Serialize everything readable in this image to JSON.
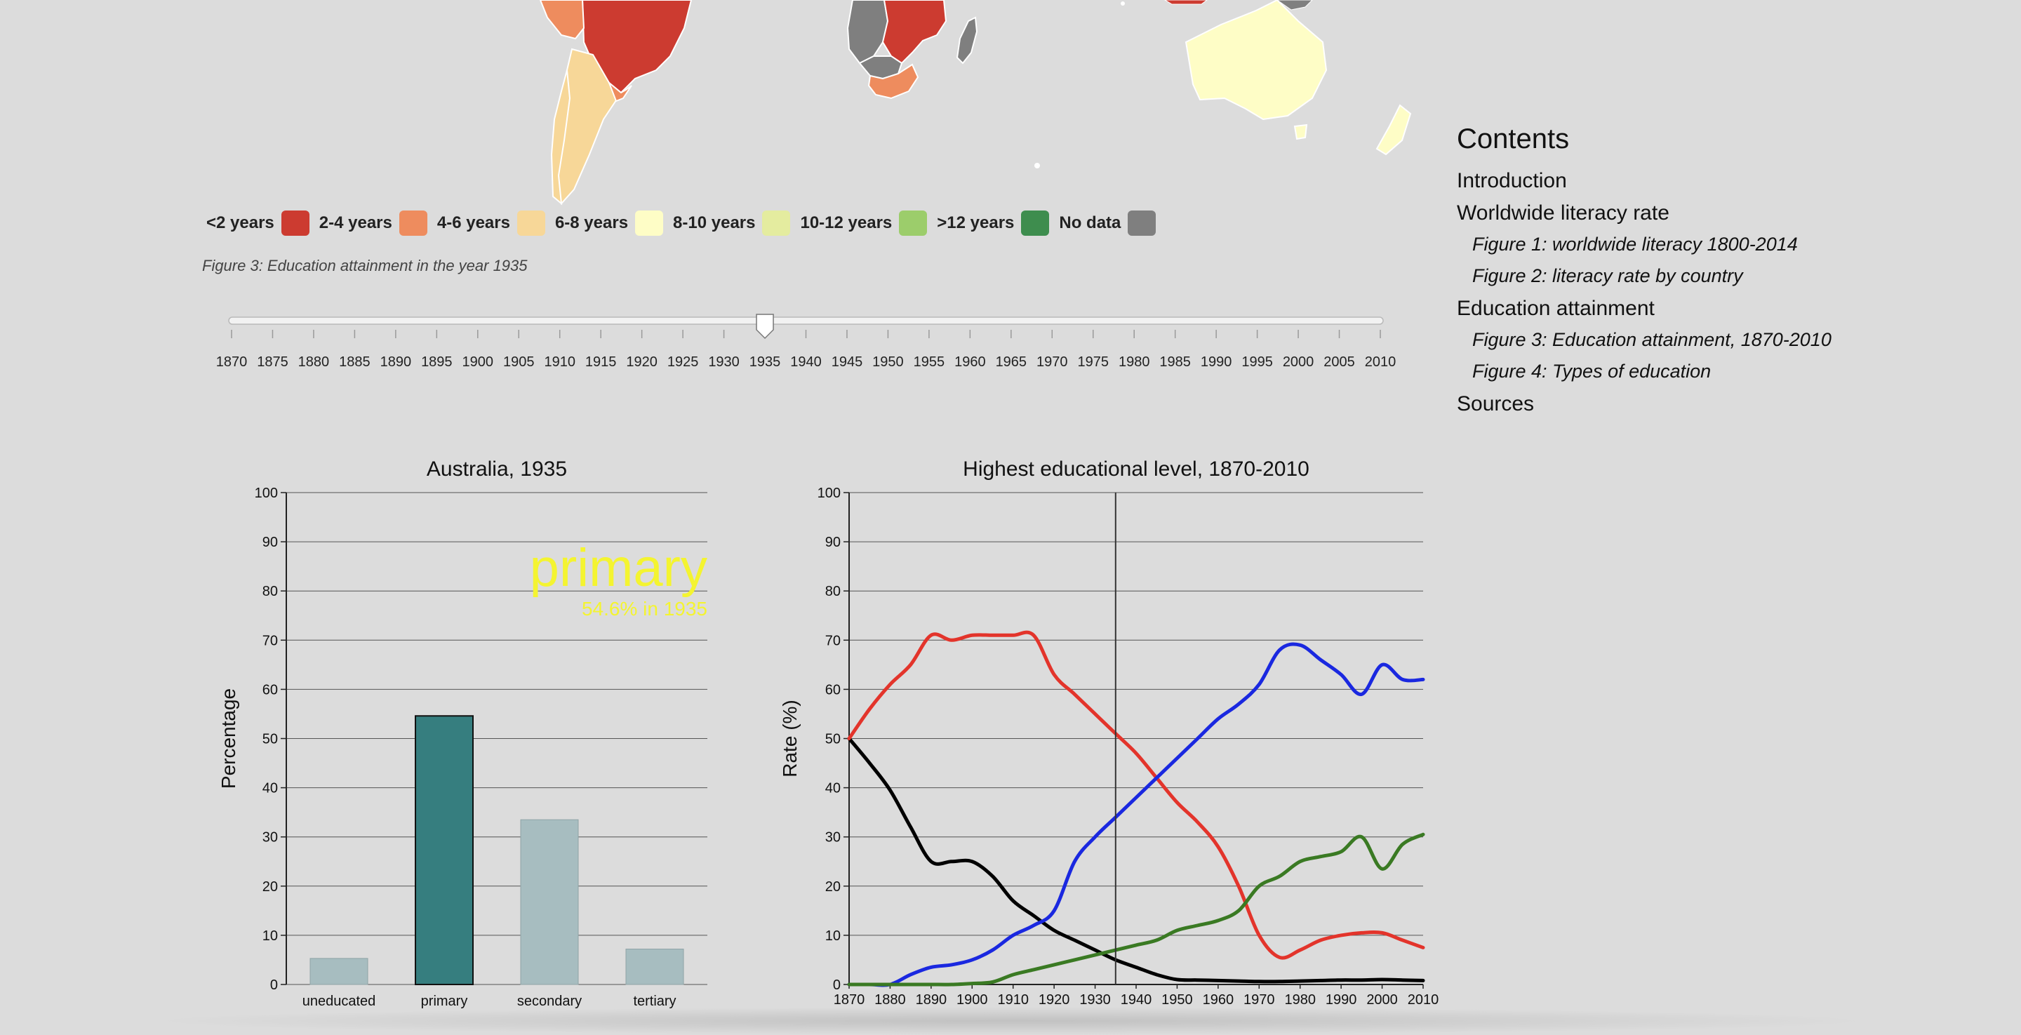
{
  "map": {
    "colors": {
      "lt2": "#cc3b30",
      "y2_4": "#ee8c5e",
      "y4_6": "#f7d798",
      "y6_8": "#fefdc6",
      "y8_10": "#e4ec9f",
      "y10_12": "#9ccd6b",
      "gt12": "#3e8d4e",
      "nodata": "#7f7f7f"
    },
    "legend": [
      {
        "label": "<2 years",
        "color": "#cc3b30"
      },
      {
        "label": "2-4 years",
        "color": "#ee8c5e"
      },
      {
        "label": "4-6 years",
        "color": "#f7d798"
      },
      {
        "label": "6-8 years",
        "color": "#fefdc6"
      },
      {
        "label": "8-10 years",
        "color": "#e4ec9f"
      },
      {
        "label": "10-12 years",
        "color": "#9ccd6b"
      },
      {
        "label": ">12 years",
        "color": "#3e8d4e"
      },
      {
        "label": "No data",
        "color": "#7f7f7f"
      }
    ],
    "caption": "Figure 3: Education attainment in the year 1935"
  },
  "slider": {
    "years": [
      "1870",
      "1875",
      "1880",
      "1885",
      "1890",
      "1895",
      "1900",
      "1905",
      "1910",
      "1915",
      "1920",
      "1925",
      "1930",
      "1935",
      "1940",
      "1945",
      "1950",
      "1955",
      "1960",
      "1965",
      "1970",
      "1975",
      "1980",
      "1985",
      "1990",
      "1995",
      "2000",
      "2005",
      "2010"
    ],
    "selected_year": 1935,
    "min": 1870,
    "max": 2010
  },
  "contents": {
    "title": "Contents",
    "items": [
      {
        "label": "Introduction",
        "level": 1
      },
      {
        "label": "Worldwide literacy rate",
        "level": 1
      },
      {
        "label": "Figure 1: worldwide literacy 1800-2014",
        "level": 2
      },
      {
        "label": "Figure 2: literacy rate by country",
        "level": 2
      },
      {
        "label": "Education attainment",
        "level": 1
      },
      {
        "label": "Figure 3: Education attainment, 1870-2010",
        "level": 2
      },
      {
        "label": "Figure 4: Types of education",
        "level": 2
      },
      {
        "label": "Sources",
        "level": 1
      }
    ]
  },
  "chart_data": [
    {
      "type": "bar",
      "title": "Australia, 1935",
      "xlabel": "",
      "ylabel": "Percentage",
      "ylim": [
        0,
        100
      ],
      "yticks": [
        0,
        10,
        20,
        30,
        40,
        50,
        60,
        70,
        80,
        90,
        100
      ],
      "categories": [
        "uneducated",
        "primary",
        "secondary",
        "tertiary"
      ],
      "values": [
        5.3,
        54.6,
        33.5,
        7.2
      ],
      "highlight_index": 1,
      "highlight_color": "#367e7f",
      "bar_color": "#a7bdc0",
      "annotation": {
        "title": "primary",
        "subtitle": "54.6% in 1935",
        "color": "#f4f430"
      },
      "grid": true
    },
    {
      "type": "line",
      "title": "Highest educational level, 1870-2010",
      "xlabel": "",
      "ylabel": "Rate (%)",
      "xlim": [
        1870,
        2010
      ],
      "ylim": [
        0,
        100
      ],
      "xticks": [
        1870,
        1880,
        1890,
        1900,
        1910,
        1920,
        1930,
        1940,
        1950,
        1960,
        1970,
        1980,
        1990,
        2000,
        2010
      ],
      "yticks": [
        0,
        10,
        20,
        30,
        40,
        50,
        60,
        70,
        80,
        90,
        100
      ],
      "marker_year": 1935,
      "grid": true,
      "x": [
        1870,
        1875,
        1880,
        1885,
        1890,
        1895,
        1900,
        1905,
        1910,
        1915,
        1920,
        1925,
        1930,
        1935,
        1940,
        1945,
        1950,
        1955,
        1960,
        1965,
        1970,
        1975,
        1980,
        1985,
        1990,
        1995,
        2000,
        2005,
        2010
      ],
      "series": [
        {
          "color": "#000000",
          "values": [
            50,
            45,
            39.5,
            32,
            25,
            25,
            25,
            22,
            17,
            14,
            11,
            9,
            7,
            5,
            3.5,
            2,
            1,
            0.9,
            0.8,
            0.7,
            0.6,
            0.6,
            0.7,
            0.8,
            0.9,
            0.9,
            1.0,
            0.9,
            0.8
          ]
        },
        {
          "color": "#e3342b",
          "values": [
            50,
            56,
            61,
            65,
            71,
            70,
            71,
            71,
            71,
            71,
            63,
            59,
            55,
            51,
            47,
            42,
            37,
            33,
            28,
            20,
            10,
            5.5,
            7,
            9,
            10,
            10.5,
            10.5,
            9,
            7.5
          ]
        },
        {
          "color": "#1a28e0",
          "values": [
            0,
            0,
            0,
            2,
            3.5,
            4,
            5,
            7,
            10,
            12,
            15,
            25,
            30,
            34,
            38,
            42,
            46,
            50,
            54,
            57,
            61,
            68,
            69,
            66,
            63,
            59,
            65,
            62,
            62
          ]
        },
        {
          "color": "#3a7a23",
          "values": [
            0,
            0,
            0,
            0,
            0,
            0,
            0.2,
            0.5,
            2,
            3,
            4,
            5,
            6,
            7,
            8,
            9,
            11,
            12,
            13,
            15,
            20,
            22,
            25,
            26,
            27,
            30,
            23.5,
            28.5,
            30.5
          ]
        }
      ]
    }
  ]
}
